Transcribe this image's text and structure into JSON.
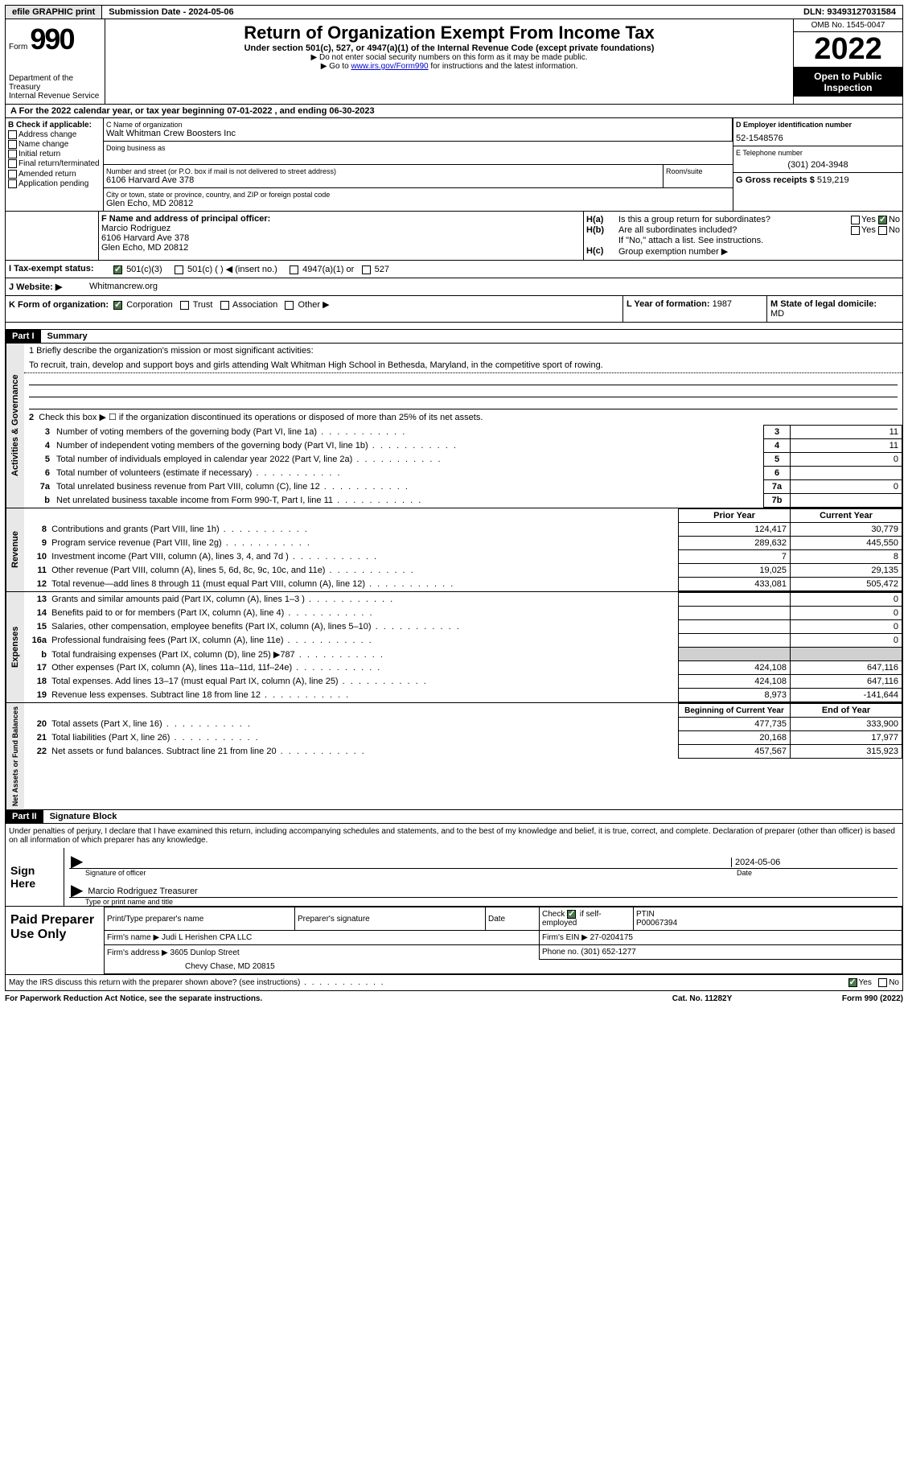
{
  "topbar": {
    "efile": "efile GRAPHIC print",
    "submission": "Submission Date - 2024-05-06",
    "dln": "DLN: 93493127031584"
  },
  "header": {
    "form_label": "Form",
    "form_num": "990",
    "dept": "Department of the Treasury",
    "irs": "Internal Revenue Service",
    "title": "Return of Organization Exempt From Income Tax",
    "sub1": "Under section 501(c), 527, or 4947(a)(1) of the Internal Revenue Code (except private foundations)",
    "sub2": "Do not enter social security numbers on this form as it may be made public.",
    "sub3_pre": "Go to ",
    "sub3_link": "www.irs.gov/Form990",
    "sub3_post": " for instructions and the latest information.",
    "omb": "OMB No. 1545-0047",
    "year": "2022",
    "open": "Open to Public Inspection"
  },
  "rowA": "A  For the 2022 calendar year, or tax year beginning 07-01-2022    , and ending 06-30-2023",
  "colB": {
    "label": "B Check if applicable:",
    "items": [
      "Address change",
      "Name change",
      "Initial return",
      "Final return/terminated",
      "Amended return",
      "Application pending"
    ]
  },
  "colC": {
    "name_label": "C Name of organization",
    "name": "Walt Whitman Crew Boosters Inc",
    "dba_label": "Doing business as",
    "street_label": "Number and street (or P.O. box if mail is not delivered to street address)",
    "street": "6106 Harvard Ave 378",
    "room_label": "Room/suite",
    "city_label": "City or town, state or province, country, and ZIP or foreign postal code",
    "city": "Glen Echo, MD  20812"
  },
  "colD": {
    "ein_label": "D Employer identification number",
    "ein": "52-1548576",
    "phone_label": "E Telephone number",
    "phone": "(301) 204-3948",
    "gross_label": "G Gross receipts $",
    "gross": "519,219"
  },
  "colF": {
    "label": "F  Name and address of principal officer:",
    "name": "Marcio Rodriguez",
    "addr1": "6106 Harvard Ave 378",
    "addr2": "Glen Echo, MD  20812"
  },
  "colH": {
    "ha": "Is this a group return for subordinates?",
    "hb": "Are all subordinates included?",
    "hb_note": "If \"No,\" attach a list. See instructions.",
    "hc": "Group exemption number ▶"
  },
  "rowI": {
    "label": "I   Tax-exempt status:",
    "opts": [
      "501(c)(3)",
      "501(c) (   ) ◀ (insert no.)",
      "4947(a)(1) or",
      "527"
    ]
  },
  "rowJ": {
    "label": "J   Website: ▶",
    "val": "Whitmancrew.org"
  },
  "rowK": {
    "label": "K Form of organization:",
    "opts": [
      "Corporation",
      "Trust",
      "Association",
      "Other ▶"
    ],
    "year_label": "L Year of formation:",
    "year": "1987",
    "state_label": "M State of legal domicile:",
    "state": "MD"
  },
  "part1": {
    "hdr": "Part I",
    "title": "Summary",
    "mission_label": "1   Briefly describe the organization's mission or most significant activities:",
    "mission": "To recruit, train, develop and support boys and girls attending Walt Whitman High School in Bethesda, Maryland, in the competitive sport of rowing.",
    "line2": "Check this box ▶ ☐ if the organization discontinued its operations or disposed of more than 25% of its net assets.",
    "activities_rows": [
      {
        "n": "3",
        "d": "Number of voting members of the governing body (Part VI, line 1a)",
        "c": "3",
        "v": "11"
      },
      {
        "n": "4",
        "d": "Number of independent voting members of the governing body (Part VI, line 1b)",
        "c": "4",
        "v": "11"
      },
      {
        "n": "5",
        "d": "Total number of individuals employed in calendar year 2022 (Part V, line 2a)",
        "c": "5",
        "v": "0"
      },
      {
        "n": "6",
        "d": "Total number of volunteers (estimate if necessary)",
        "c": "6",
        "v": ""
      },
      {
        "n": "7a",
        "d": "Total unrelated business revenue from Part VIII, column (C), line 12",
        "c": "7a",
        "v": "0"
      },
      {
        "n": "b",
        "d": "Net unrelated business taxable income from Form 990-T, Part I, line 11",
        "c": "7b",
        "v": ""
      }
    ],
    "tab_activities": "Activities & Governance",
    "tab_revenue": "Revenue",
    "tab_expenses": "Expenses",
    "tab_netassets": "Net Assets or Fund Balances",
    "prior_label": "Prior Year",
    "current_label": "Current Year",
    "revenue_rows": [
      {
        "n": "8",
        "d": "Contributions and grants (Part VIII, line 1h)",
        "p": "124,417",
        "c": "30,779"
      },
      {
        "n": "9",
        "d": "Program service revenue (Part VIII, line 2g)",
        "p": "289,632",
        "c": "445,550"
      },
      {
        "n": "10",
        "d": "Investment income (Part VIII, column (A), lines 3, 4, and 7d )",
        "p": "7",
        "c": "8"
      },
      {
        "n": "11",
        "d": "Other revenue (Part VIII, column (A), lines 5, 6d, 8c, 9c, 10c, and 11e)",
        "p": "19,025",
        "c": "29,135"
      },
      {
        "n": "12",
        "d": "Total revenue—add lines 8 through 11 (must equal Part VIII, column (A), line 12)",
        "p": "433,081",
        "c": "505,472"
      }
    ],
    "expense_rows": [
      {
        "n": "13",
        "d": "Grants and similar amounts paid (Part IX, column (A), lines 1–3 )",
        "p": "",
        "c": "0"
      },
      {
        "n": "14",
        "d": "Benefits paid to or for members (Part IX, column (A), line 4)",
        "p": "",
        "c": "0"
      },
      {
        "n": "15",
        "d": "Salaries, other compensation, employee benefits (Part IX, column (A), lines 5–10)",
        "p": "",
        "c": "0"
      },
      {
        "n": "16a",
        "d": "Professional fundraising fees (Part IX, column (A), line 11e)",
        "p": "",
        "c": "0"
      },
      {
        "n": "b",
        "d": "Total fundraising expenses (Part IX, column (D), line 25) ▶787",
        "p": "grey",
        "c": "grey"
      },
      {
        "n": "17",
        "d": "Other expenses (Part IX, column (A), lines 11a–11d, 11f–24e)",
        "p": "424,108",
        "c": "647,116"
      },
      {
        "n": "18",
        "d": "Total expenses. Add lines 13–17 (must equal Part IX, column (A), line 25)",
        "p": "424,108",
        "c": "647,116"
      },
      {
        "n": "19",
        "d": "Revenue less expenses. Subtract line 18 from line 12",
        "p": "8,973",
        "c": "-141,644"
      }
    ],
    "begin_label": "Beginning of Current Year",
    "end_label": "End of Year",
    "asset_rows": [
      {
        "n": "20",
        "d": "Total assets (Part X, line 16)",
        "p": "477,735",
        "c": "333,900"
      },
      {
        "n": "21",
        "d": "Total liabilities (Part X, line 26)",
        "p": "20,168",
        "c": "17,977"
      },
      {
        "n": "22",
        "d": "Net assets or fund balances. Subtract line 21 from line 20",
        "p": "457,567",
        "c": "315,923"
      }
    ]
  },
  "part2": {
    "hdr": "Part II",
    "title": "Signature Block",
    "declaration": "Under penalties of perjury, I declare that I have examined this return, including accompanying schedules and statements, and to the best of my knowledge and belief, it is true, correct, and complete. Declaration of preparer (other than officer) is based on all information of which preparer has any knowledge.",
    "sign_here": "Sign Here",
    "sig_officer": "Signature of officer",
    "sig_date": "2024-05-06",
    "date_label": "Date",
    "officer_name": "Marcio Rodriguez  Treasurer",
    "type_label": "Type or print name and title",
    "paid": "Paid Preparer Use Only",
    "prep_name_label": "Print/Type preparer's name",
    "prep_sig_label": "Preparer's signature",
    "prep_date_label": "Date",
    "check_label": "Check ☑ if self-employed",
    "ptin_label": "PTIN",
    "ptin": "P00067394",
    "firm_name_label": "Firm's name     ▶",
    "firm_name": "Judi L Herishen CPA LLC",
    "firm_ein_label": "Firm's EIN ▶",
    "firm_ein": "27-0204175",
    "firm_addr_label": "Firm's address ▶",
    "firm_addr": "3605 Dunlop Street",
    "firm_city": "Chevy Chase, MD  20815",
    "firm_phone_label": "Phone no.",
    "firm_phone": "(301) 652-1277",
    "discuss": "May the IRS discuss this return with the preparer shown above? (see instructions)"
  },
  "footer": {
    "pra": "For Paperwork Reduction Act Notice, see the separate instructions.",
    "cat": "Cat. No. 11282Y",
    "form": "Form 990 (2022)"
  },
  "colors": {
    "black": "#000000",
    "white": "#ffffff",
    "grey": "#d0d0d0",
    "link": "#0000cc",
    "check_green": "#4a7a4a"
  }
}
